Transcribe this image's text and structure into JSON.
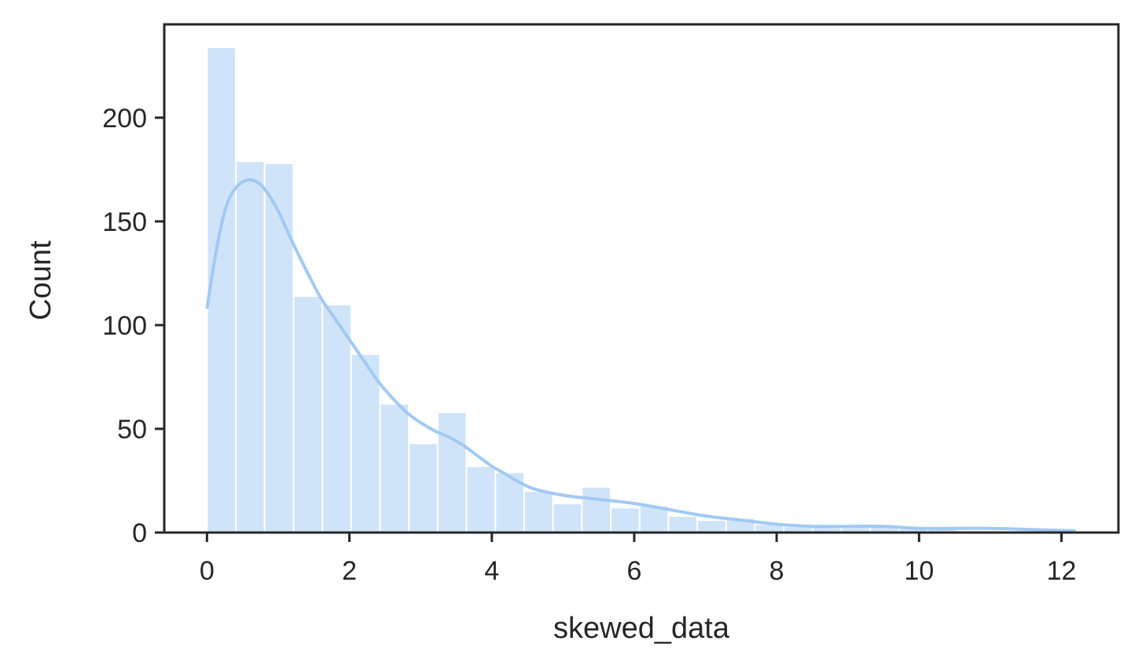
{
  "chart_data": {
    "type": "bar",
    "xlabel": "skewed_data",
    "ylabel": "Count",
    "xlim": [
      -0.6,
      12.8
    ],
    "ylim": [
      0,
      245
    ],
    "xticks": [
      0,
      2,
      4,
      6,
      8,
      10,
      12
    ],
    "yticks": [
      0,
      50,
      100,
      150,
      200
    ],
    "grid": false,
    "bar_color": "#a1c9f4",
    "bar_opacity": 0.5,
    "kde_color": "#a1c9f4",
    "bins": [
      {
        "x0": 0.0,
        "x1": 0.405,
        "count": 234
      },
      {
        "x0": 0.405,
        "x1": 0.81,
        "count": 179
      },
      {
        "x0": 0.81,
        "x1": 1.215,
        "count": 178
      },
      {
        "x0": 1.215,
        "x1": 1.62,
        "count": 114
      },
      {
        "x0": 1.62,
        "x1": 2.025,
        "count": 110
      },
      {
        "x0": 2.025,
        "x1": 2.43,
        "count": 86
      },
      {
        "x0": 2.43,
        "x1": 2.835,
        "count": 62
      },
      {
        "x0": 2.835,
        "x1": 3.24,
        "count": 43
      },
      {
        "x0": 3.24,
        "x1": 3.645,
        "count": 58
      },
      {
        "x0": 3.645,
        "x1": 4.05,
        "count": 32
      },
      {
        "x0": 4.05,
        "x1": 4.455,
        "count": 29
      },
      {
        "x0": 4.455,
        "x1": 4.86,
        "count": 20
      },
      {
        "x0": 4.86,
        "x1": 5.265,
        "count": 14
      },
      {
        "x0": 5.265,
        "x1": 5.67,
        "count": 22
      },
      {
        "x0": 5.67,
        "x1": 6.075,
        "count": 12
      },
      {
        "x0": 6.075,
        "x1": 6.48,
        "count": 13
      },
      {
        "x0": 6.48,
        "x1": 6.885,
        "count": 8
      },
      {
        "x0": 6.885,
        "x1": 7.29,
        "count": 6
      },
      {
        "x0": 7.29,
        "x1": 7.695,
        "count": 7
      },
      {
        "x0": 7.695,
        "x1": 8.1,
        "count": 4
      },
      {
        "x0": 8.1,
        "x1": 8.505,
        "count": 3
      },
      {
        "x0": 8.505,
        "x1": 8.91,
        "count": 3
      },
      {
        "x0": 8.91,
        "x1": 9.315,
        "count": 3
      },
      {
        "x0": 9.315,
        "x1": 9.72,
        "count": 3
      },
      {
        "x0": 9.72,
        "x1": 10.125,
        "count": 2
      },
      {
        "x0": 10.125,
        "x1": 10.53,
        "count": 2
      },
      {
        "x0": 10.53,
        "x1": 10.935,
        "count": 1
      },
      {
        "x0": 10.935,
        "x1": 11.34,
        "count": 1
      },
      {
        "x0": 11.34,
        "x1": 11.745,
        "count": 1
      },
      {
        "x0": 11.745,
        "x1": 12.15,
        "count": 1
      }
    ],
    "kde": {
      "x": [
        0.0,
        0.1,
        0.2,
        0.3,
        0.4,
        0.5,
        0.6,
        0.7,
        0.8,
        0.9,
        1.0,
        1.2,
        1.4,
        1.6,
        1.8,
        2.0,
        2.2,
        2.4,
        2.6,
        2.8,
        3.0,
        3.2,
        3.4,
        3.6,
        3.8,
        4.0,
        4.2,
        4.4,
        4.6,
        5.0,
        5.5,
        6.0,
        6.5,
        7.0,
        7.5,
        8.0,
        8.5,
        9.0,
        9.5,
        10.0,
        10.5,
        11.0,
        11.5,
        12.0,
        12.2
      ],
      "y": [
        108,
        130,
        148,
        160,
        166,
        169,
        170,
        169,
        166,
        161,
        155,
        140,
        126,
        113,
        103,
        93,
        83,
        73,
        65,
        58,
        53,
        49,
        46,
        42,
        37,
        32,
        28,
        24,
        21,
        18,
        16,
        14,
        11,
        8,
        6,
        4,
        3,
        3,
        3,
        2,
        2,
        2,
        1.5,
        1,
        0.8
      ]
    }
  }
}
